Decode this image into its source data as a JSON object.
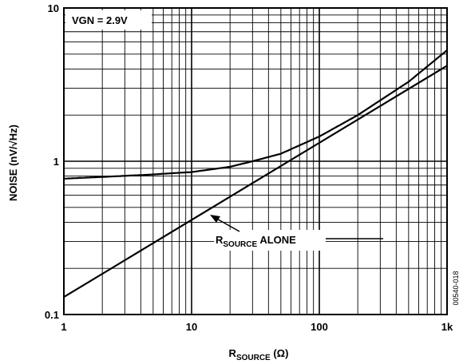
{
  "chart_data": {
    "type": "line",
    "title": "",
    "xlabel": {
      "main": "R",
      "sub": "SOURCE",
      "tail": " (Ω)"
    },
    "ylabel": "NOISE (nV/√Hz)",
    "xscale": "log",
    "yscale": "log",
    "xlim": [
      1,
      1000
    ],
    "ylim": [
      0.1,
      10
    ],
    "x_tick_labels": [
      {
        "value": 1,
        "label": "1"
      },
      {
        "value": 10,
        "label": "10"
      },
      {
        "value": 100,
        "label": "100"
      },
      {
        "value": 1000,
        "label": "1k"
      }
    ],
    "y_tick_labels": [
      {
        "value": 0.1,
        "label": "0.1"
      },
      {
        "value": 1,
        "label": "1"
      },
      {
        "value": 10,
        "label": "10"
      }
    ],
    "grid": true,
    "annotations": {
      "condition": "VGN = 2.9V",
      "series_label": {
        "main": "R",
        "sub": "SOURCE",
        "tail": " ALONE"
      },
      "figure_id": "00540-018"
    },
    "series": [
      {
        "x": [
          1,
          2,
          5,
          10,
          20,
          30,
          50,
          100,
          200,
          500,
          1000
        ],
        "y": [
          0.77,
          0.79,
          0.82,
          0.85,
          0.92,
          1.0,
          1.12,
          1.45,
          2.0,
          3.3,
          5.3
        ]
      },
      {
        "x": [
          1,
          1000
        ],
        "y": [
          0.13,
          4.2
        ]
      }
    ]
  }
}
